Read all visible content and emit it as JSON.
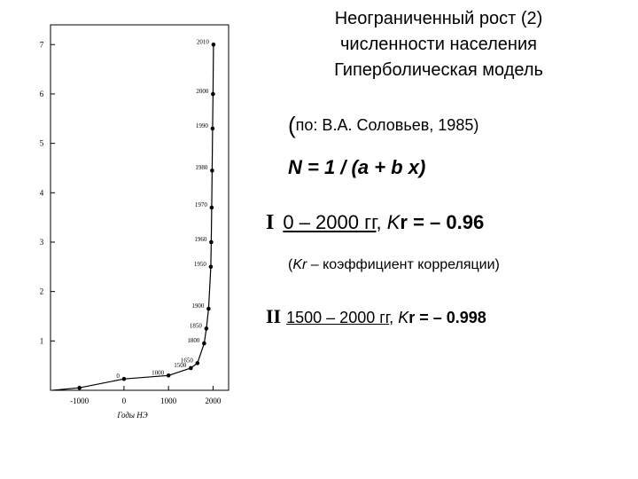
{
  "chart_data": {
    "type": "line",
    "xlabel": "Годы НЭ",
    "x_ticks": [
      "-1000",
      "0",
      "1000",
      "2000"
    ],
    "y_ticks": [
      "1",
      "2",
      "3",
      "4",
      "5",
      "6",
      "7"
    ],
    "xlim": [
      -1650,
      2350
    ],
    "ylim": [
      0,
      7.4
    ],
    "points": [
      {
        "x": -1000,
        "y": 0.05,
        "label": ""
      },
      {
        "x": 0,
        "y": 0.23,
        "label": "0"
      },
      {
        "x": 1000,
        "y": 0.3,
        "label": "1000"
      },
      {
        "x": 1500,
        "y": 0.45,
        "label": "1500"
      },
      {
        "x": 1650,
        "y": 0.55,
        "label": "1650"
      },
      {
        "x": 1800,
        "y": 0.95,
        "label": "1800"
      },
      {
        "x": 1850,
        "y": 1.25,
        "label": "1850"
      },
      {
        "x": 1900,
        "y": 1.65,
        "label": "1900"
      },
      {
        "x": 1950,
        "y": 2.5,
        "label": "1950"
      },
      {
        "x": 1960,
        "y": 3.0,
        "label": "1960"
      },
      {
        "x": 1970,
        "y": 3.7,
        "label": "1970"
      },
      {
        "x": 1980,
        "y": 4.45,
        "label": "1980"
      },
      {
        "x": 1990,
        "y": 5.3,
        "label": "1990"
      },
      {
        "x": 2000,
        "y": 6.0,
        "label": "2000"
      },
      {
        "x": 2010,
        "y": 7.0,
        "label": "2010"
      }
    ]
  },
  "title": {
    "line1": "Неограниченный рост (2)",
    "line2": "численности населения",
    "line3": "Гиперболическая модель"
  },
  "source": {
    "open": "(",
    "text": "по: В.А. Соловьев, 1985)"
  },
  "formula": "N = 1 / (a + b x)",
  "item1": {
    "numeral": "I",
    "range": "0 – 2000 гг",
    "sep": ", ",
    "kr_prefix": "K",
    "kr_rest": "r = –  0.96"
  },
  "note": {
    "open": "(",
    "k": "Kr",
    "rest": " – коэффициент корреляции)"
  },
  "item2": {
    "numeral": "II",
    "range": "1500 – 2000 гг",
    "sep": ", ",
    "kr_prefix": "K",
    "kr_rest": "r = – 0.998"
  }
}
